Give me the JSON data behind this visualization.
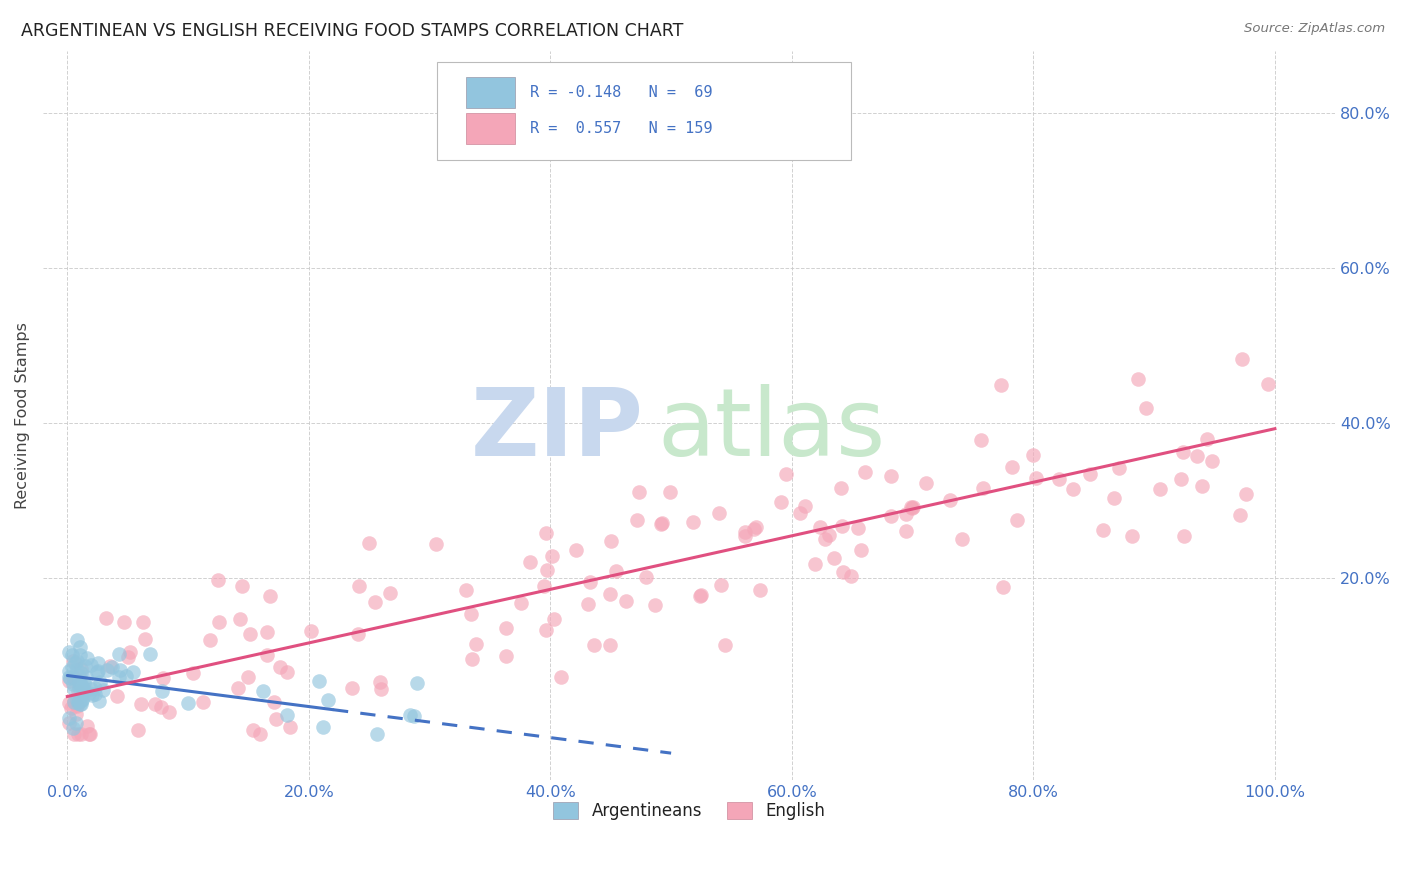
{
  "title": "ARGENTINEAN VS ENGLISH RECEIVING FOOD STAMPS CORRELATION CHART",
  "source": "Source: ZipAtlas.com",
  "ylabel": "Receiving Food Stamps",
  "legend_label1": "Argentineans",
  "legend_label2": "English",
  "blue_color": "#92c5de",
  "pink_color": "#f4a6b8",
  "line_blue_solid": "#4472c4",
  "line_blue_dash": "#4472c4",
  "line_pink": "#e05080",
  "tick_color": "#4472c4",
  "legend_text_color": "#4472c4",
  "title_color": "#222222",
  "source_color": "#777777",
  "ylabel_color": "#444444",
  "watermark_zip_color": "#c8d8ee",
  "watermark_atlas_color": "#c8e8cc",
  "grid_color": "#cccccc",
  "xlim": [
    -0.02,
    1.05
  ],
  "ylim": [
    -0.06,
    0.88
  ],
  "xticks": [
    0.0,
    0.2,
    0.4,
    0.6,
    0.8,
    1.0
  ],
  "yticks": [
    0.2,
    0.4,
    0.6,
    0.8
  ],
  "xticklabels": [
    "0.0%",
    "20.0%",
    "40.0%",
    "60.0%",
    "80.0%",
    "100.0%"
  ],
  "yticklabels_right": [
    "20.0%",
    "40.0%",
    "60.0%",
    "80.0%"
  ],
  "blue_line_x0": 0.0,
  "blue_line_x1_solid": 0.22,
  "blue_line_x1_dash": 0.5,
  "blue_line_y_intercept": 0.075,
  "blue_line_slope": -0.2,
  "pink_line_x0": 0.0,
  "pink_line_x1": 1.0,
  "pink_line_y_intercept": 0.048,
  "pink_line_slope": 0.345
}
